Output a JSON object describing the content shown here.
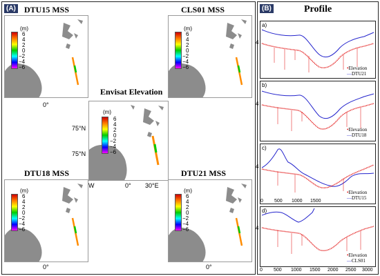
{
  "panels": {
    "A_label": "(A)",
    "B_label": "(B)",
    "profile_title": "Profile"
  },
  "maps": {
    "dtu15": {
      "title": "DTU15 MSS",
      "lon": "0°"
    },
    "cls01": {
      "title": "CLS01 MSS"
    },
    "center": {
      "title": "Envisat Elevation",
      "lat1": "75°N",
      "lat2": "75°N",
      "lon_w": "W",
      "lon_0": "0°",
      "lon_30": "30°E"
    },
    "dtu18": {
      "title": "DTU18 MSS",
      "lon": "0°"
    },
    "dtu21": {
      "title": "DTU21 MSS",
      "lon": "0°"
    }
  },
  "colorbar": {
    "unit": "(m)",
    "ticks": [
      "6",
      "4",
      "2",
      "0",
      "−2",
      "−4",
      "−6"
    ]
  },
  "profiles": [
    {
      "letter": "a)",
      "legend_elev": "Elevation",
      "legend_model": "DTU21"
    },
    {
      "letter": "b)",
      "legend_elev": "Elevation",
      "legend_model": "DTU18"
    },
    {
      "letter": "c)",
      "legend_elev": "Elevation",
      "legend_model": "DTU15"
    },
    {
      "letter": "d)",
      "legend_elev": "Elevation",
      "legend_model": "CLS01"
    }
  ],
  "profile_axes": {
    "xticks": [
      "0",
      "500",
      "1000",
      "1500",
      "2000",
      "2500",
      "3000"
    ],
    "ytick": "4"
  },
  "colors": {
    "elevation": "#e00000",
    "model": "#2222cc",
    "land": "#8c8c8c",
    "tag_bg": "#2a3a66"
  }
}
